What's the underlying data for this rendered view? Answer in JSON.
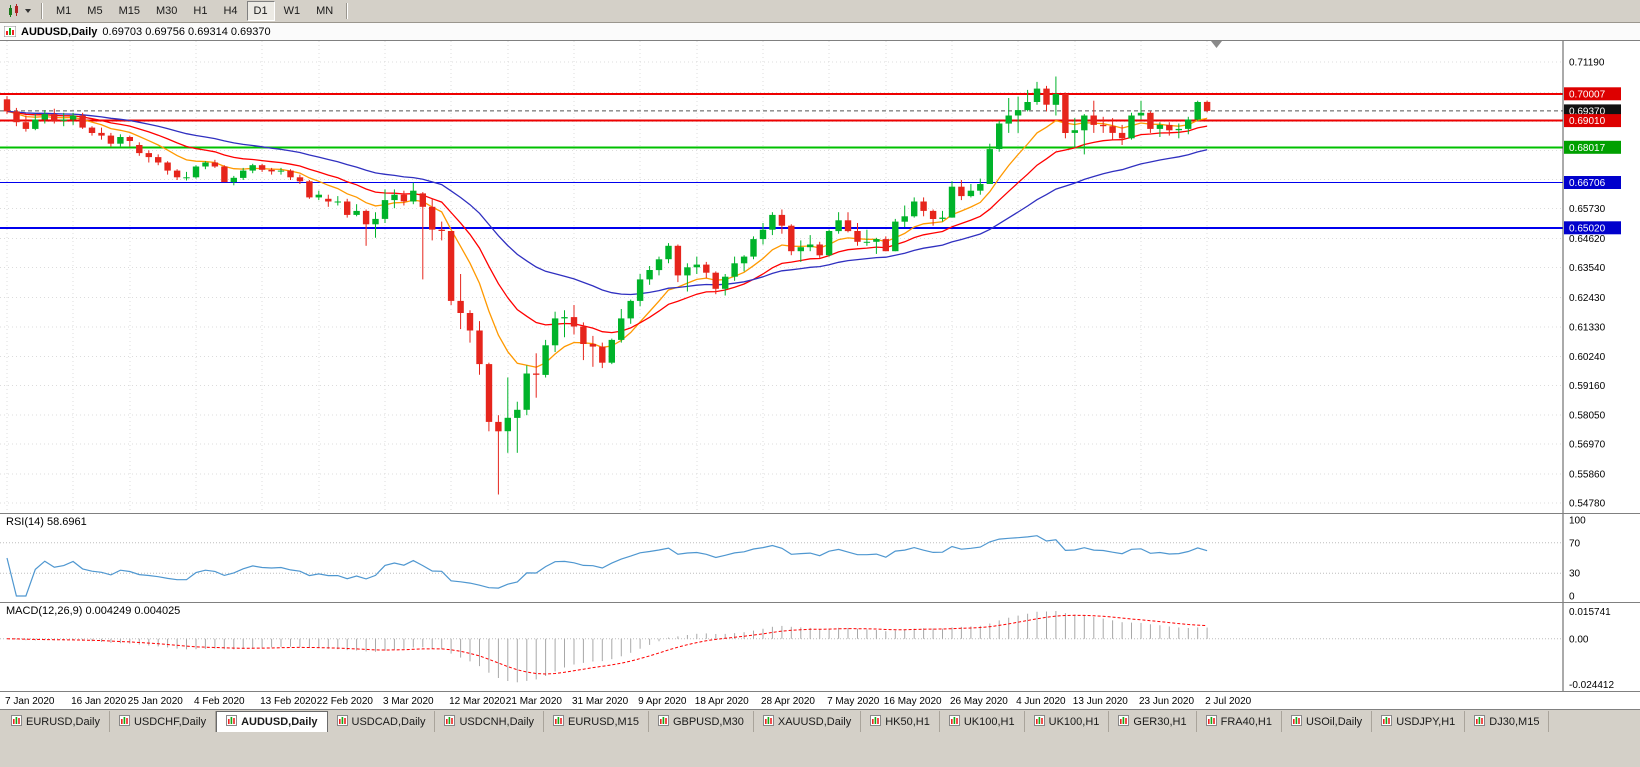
{
  "toolbar": {
    "chart_type_button": "Charts",
    "timeframes": [
      {
        "label": "M1",
        "active": false
      },
      {
        "label": "M5",
        "active": false
      },
      {
        "label": "M15",
        "active": false
      },
      {
        "label": "M30",
        "active": false
      },
      {
        "label": "H1",
        "active": false
      },
      {
        "label": "H4",
        "active": false
      },
      {
        "label": "D1",
        "active": true
      },
      {
        "label": "W1",
        "active": false
      },
      {
        "label": "MN",
        "active": false
      }
    ]
  },
  "chart_header": {
    "title": "AUDUSD,Daily",
    "ohlc": "0.69703 0.69756 0.69314 0.69370",
    "open": "0.69703",
    "high": "0.69756",
    "low": "0.69314",
    "close": "0.69370"
  },
  "colors": {
    "toolbar_bg": "#d4d0c8",
    "chart_bg": "#ffffff",
    "grid": "#dcdcdc",
    "bull": "#00b32a",
    "bear": "#e6251c",
    "current_price_line": "#555555",
    "macd_hist": "#a8a8a8",
    "macd_signal": "#ff0000",
    "axis_line": "#555555"
  },
  "chart_data": {
    "type": "candlestick",
    "symbol": "AUDUSD",
    "period": "Daily",
    "current_price": 0.6937,
    "price_axis": {
      "decimals": 5,
      "view_max": 0.7197,
      "view_min": 0.5441,
      "labels": [
        0.7119,
        0.6573,
        0.6462,
        0.6354,
        0.6243,
        0.6133,
        0.6024,
        0.5916,
        0.5805,
        0.5697,
        0.5586,
        0.5478
      ],
      "gridlines": [
        0.7119,
        0.7005,
        0.6897,
        0.6789,
        0.6681,
        0.6573,
        0.6462,
        0.6354,
        0.6243,
        0.6133,
        0.6024,
        0.5916,
        0.5805,
        0.5697,
        0.5586,
        0.5478
      ]
    },
    "price_badges": [
      {
        "label": "0.70007",
        "price": 0.70007,
        "color": "#dd0000"
      },
      {
        "label": "0.69370",
        "price": 0.6937,
        "color": "#111111"
      },
      {
        "label": "0.69010",
        "price": 0.6901,
        "color": "#dd0000"
      },
      {
        "label": "0.68017",
        "price": 0.68017,
        "color": "#00a000"
      },
      {
        "label": "0.66706",
        "price": 0.66706,
        "color": "#0000cc"
      },
      {
        "label": "0.65020",
        "price": 0.6502,
        "color": "#0000cc"
      }
    ],
    "horizontal_lines": [
      {
        "price": 0.70007,
        "color": "#ee0000",
        "width": 2
      },
      {
        "price": 0.6901,
        "color": "#ee0000",
        "width": 2
      },
      {
        "price": 0.68017,
        "color": "#00c000",
        "width": 2
      },
      {
        "price": 0.66706,
        "color": "#0000ee",
        "width": 1
      },
      {
        "price": 0.6502,
        "color": "#0000ee",
        "width": 2
      }
    ],
    "moving_averages": [
      {
        "period": 9,
        "method": "ema",
        "color": "#ff9900"
      },
      {
        "period": 18,
        "method": "ema",
        "color": "#ff0000"
      },
      {
        "period": 36,
        "method": "ema",
        "color": "#3030c0"
      }
    ],
    "date_labels": [
      {
        "text": "7 Jan 2020",
        "index": 0
      },
      {
        "text": "16 Jan 2020",
        "index": 7
      },
      {
        "text": "25 Jan 2020",
        "index": 13
      },
      {
        "text": "4 Feb 2020",
        "index": 20
      },
      {
        "text": "13 Feb 2020",
        "index": 27
      },
      {
        "text": "22 Feb 2020",
        "index": 33
      },
      {
        "text": "3 Mar 2020",
        "index": 40
      },
      {
        "text": "12 Mar 2020",
        "index": 47
      },
      {
        "text": "21 Mar 2020",
        "index": 53
      },
      {
        "text": "31 Mar 2020",
        "index": 60
      },
      {
        "text": "9 Apr 2020",
        "index": 67
      },
      {
        "text": "18 Apr 2020",
        "index": 73
      },
      {
        "text": "28 Apr 2020",
        "index": 80
      },
      {
        "text": "7 May 2020",
        "index": 87
      },
      {
        "text": "16 May 2020",
        "index": 93
      },
      {
        "text": "26 May 2020",
        "index": 100
      },
      {
        "text": "4 Jun 2020",
        "index": 107
      },
      {
        "text": "13 Jun 2020",
        "index": 113
      },
      {
        "text": "23 Jun 2020",
        "index": 120
      },
      {
        "text": "2 Jul 2020",
        "index": 127
      }
    ],
    "candles": [
      [
        0.698,
        0.6992,
        0.6925,
        0.6935
      ],
      [
        0.6935,
        0.6948,
        0.688,
        0.6895
      ],
      [
        0.6895,
        0.692,
        0.686,
        0.687
      ],
      [
        0.687,
        0.6925,
        0.6865,
        0.6905
      ],
      [
        0.6905,
        0.694,
        0.689,
        0.6925
      ],
      [
        0.6925,
        0.6945,
        0.689,
        0.69
      ],
      [
        0.69,
        0.693,
        0.688,
        0.6905
      ],
      [
        0.6905,
        0.693,
        0.6885,
        0.692
      ],
      [
        0.692,
        0.693,
        0.687,
        0.6875
      ],
      [
        0.6875,
        0.688,
        0.6845,
        0.6855
      ],
      [
        0.6855,
        0.6875,
        0.683,
        0.6845
      ],
      [
        0.6845,
        0.6855,
        0.6805,
        0.6815
      ],
      [
        0.6815,
        0.685,
        0.6805,
        0.684
      ],
      [
        0.684,
        0.6845,
        0.6805,
        0.6825
      ],
      [
        0.681,
        0.682,
        0.677,
        0.678
      ],
      [
        0.678,
        0.679,
        0.6745,
        0.6765
      ],
      [
        0.6765,
        0.6775,
        0.6735,
        0.6745
      ],
      [
        0.6745,
        0.675,
        0.67,
        0.6715
      ],
      [
        0.6715,
        0.672,
        0.668,
        0.669
      ],
      [
        0.669,
        0.671,
        0.6678,
        0.669
      ],
      [
        0.669,
        0.6735,
        0.6685,
        0.673
      ],
      [
        0.673,
        0.675,
        0.672,
        0.6745
      ],
      [
        0.6745,
        0.6755,
        0.6725,
        0.673
      ],
      [
        0.673,
        0.6735,
        0.668,
        0.6672
      ],
      [
        0.6672,
        0.6695,
        0.666,
        0.6688
      ],
      [
        0.6688,
        0.6725,
        0.668,
        0.6715
      ],
      [
        0.6715,
        0.674,
        0.6705,
        0.6735
      ],
      [
        0.6735,
        0.674,
        0.671,
        0.6718
      ],
      [
        0.6718,
        0.6725,
        0.67,
        0.6712
      ],
      [
        0.6712,
        0.6725,
        0.67,
        0.6715
      ],
      [
        0.6715,
        0.672,
        0.668,
        0.669
      ],
      [
        0.669,
        0.67,
        0.6665,
        0.6675
      ],
      [
        0.6675,
        0.668,
        0.661,
        0.6615
      ],
      [
        0.6615,
        0.664,
        0.6605,
        0.6625
      ],
      [
        0.661,
        0.6625,
        0.658,
        0.66
      ],
      [
        0.66,
        0.662,
        0.6585,
        0.66
      ],
      [
        0.66,
        0.661,
        0.654,
        0.655
      ],
      [
        0.655,
        0.659,
        0.6545,
        0.6565
      ],
      [
        0.6565,
        0.657,
        0.6435,
        0.6515
      ],
      [
        0.6515,
        0.656,
        0.6465,
        0.6535
      ],
      [
        0.6535,
        0.6645,
        0.652,
        0.6605
      ],
      [
        0.6605,
        0.6645,
        0.6575,
        0.6625
      ],
      [
        0.6625,
        0.664,
        0.6585,
        0.66
      ],
      [
        0.66,
        0.667,
        0.659,
        0.664
      ],
      [
        0.663,
        0.6635,
        0.631,
        0.658
      ],
      [
        0.658,
        0.661,
        0.6455,
        0.6495
      ],
      [
        0.6495,
        0.6525,
        0.6455,
        0.649
      ],
      [
        0.649,
        0.649,
        0.6215,
        0.623
      ],
      [
        0.623,
        0.633,
        0.6125,
        0.6185
      ],
      [
        0.6185,
        0.6195,
        0.6075,
        0.612
      ],
      [
        0.612,
        0.6155,
        0.5955,
        0.5995
      ],
      [
        0.5995,
        0.6,
        0.5745,
        0.578
      ],
      [
        0.578,
        0.5805,
        0.551,
        0.5745
      ],
      [
        0.5745,
        0.5945,
        0.5665,
        0.5795
      ],
      [
        0.5795,
        0.5855,
        0.5665,
        0.5825
      ],
      [
        0.5825,
        0.599,
        0.5805,
        0.596
      ],
      [
        0.596,
        0.6035,
        0.587,
        0.5955
      ],
      [
        0.5955,
        0.6085,
        0.5945,
        0.6065
      ],
      [
        0.6065,
        0.619,
        0.604,
        0.6165
      ],
      [
        0.6165,
        0.6195,
        0.6095,
        0.617
      ],
      [
        0.617,
        0.6215,
        0.6105,
        0.6135
      ],
      [
        0.6135,
        0.615,
        0.601,
        0.607
      ],
      [
        0.607,
        0.61,
        0.5985,
        0.606
      ],
      [
        0.606,
        0.6075,
        0.598,
        0.6
      ],
      [
        0.6,
        0.609,
        0.5995,
        0.6085
      ],
      [
        0.6085,
        0.62,
        0.6075,
        0.6165
      ],
      [
        0.6165,
        0.6235,
        0.6145,
        0.623
      ],
      [
        0.623,
        0.633,
        0.621,
        0.631
      ],
      [
        0.631,
        0.636,
        0.629,
        0.6345
      ],
      [
        0.6345,
        0.6395,
        0.6325,
        0.6385
      ],
      [
        0.6385,
        0.6445,
        0.637,
        0.6435
      ],
      [
        0.6435,
        0.644,
        0.63,
        0.6325
      ],
      [
        0.6325,
        0.637,
        0.6265,
        0.6355
      ],
      [
        0.6355,
        0.6395,
        0.633,
        0.6365
      ],
      [
        0.6365,
        0.6375,
        0.6315,
        0.6335
      ],
      [
        0.6335,
        0.634,
        0.6255,
        0.6275
      ],
      [
        0.6275,
        0.633,
        0.625,
        0.632
      ],
      [
        0.632,
        0.6395,
        0.6305,
        0.637
      ],
      [
        0.637,
        0.64,
        0.634,
        0.6395
      ],
      [
        0.6395,
        0.647,
        0.6385,
        0.646
      ],
      [
        0.646,
        0.652,
        0.644,
        0.6495
      ],
      [
        0.6495,
        0.656,
        0.6475,
        0.655
      ],
      [
        0.655,
        0.657,
        0.648,
        0.651
      ],
      [
        0.651,
        0.6515,
        0.64,
        0.6415
      ],
      [
        0.6415,
        0.6455,
        0.6375,
        0.643
      ],
      [
        0.643,
        0.6475,
        0.6415,
        0.644
      ],
      [
        0.644,
        0.645,
        0.639,
        0.64
      ],
      [
        0.64,
        0.6495,
        0.6395,
        0.649
      ],
      [
        0.649,
        0.656,
        0.648,
        0.653
      ],
      [
        0.653,
        0.656,
        0.6485,
        0.649
      ],
      [
        0.649,
        0.652,
        0.6435,
        0.645
      ],
      [
        0.645,
        0.6495,
        0.6435,
        0.645
      ],
      [
        0.645,
        0.6465,
        0.6405,
        0.646
      ],
      [
        0.646,
        0.647,
        0.6415,
        0.6415
      ],
      [
        0.6415,
        0.6535,
        0.6415,
        0.6525
      ],
      [
        0.6525,
        0.6585,
        0.6505,
        0.6545
      ],
      [
        0.6545,
        0.6615,
        0.654,
        0.66
      ],
      [
        0.66,
        0.6615,
        0.6545,
        0.6565
      ],
      [
        0.6565,
        0.657,
        0.651,
        0.6535
      ],
      [
        0.6535,
        0.6565,
        0.6525,
        0.654
      ],
      [
        0.654,
        0.6675,
        0.654,
        0.6655
      ],
      [
        0.6655,
        0.668,
        0.6605,
        0.662
      ],
      [
        0.662,
        0.6665,
        0.6615,
        0.664
      ],
      [
        0.664,
        0.6685,
        0.6625,
        0.6665
      ],
      [
        0.6665,
        0.6815,
        0.6665,
        0.6795
      ],
      [
        0.6795,
        0.69,
        0.6785,
        0.689
      ],
      [
        0.689,
        0.6985,
        0.6855,
        0.692
      ],
      [
        0.692,
        0.699,
        0.6855,
        0.694
      ],
      [
        0.694,
        0.7015,
        0.6935,
        0.697
      ],
      [
        0.697,
        0.7045,
        0.696,
        0.702
      ],
      [
        0.702,
        0.703,
        0.6935,
        0.696
      ],
      [
        0.696,
        0.7065,
        0.692,
        0.7
      ],
      [
        0.7,
        0.7005,
        0.6835,
        0.6855
      ],
      [
        0.6855,
        0.691,
        0.68,
        0.6865
      ],
      [
        0.6865,
        0.6925,
        0.6775,
        0.692
      ],
      [
        0.692,
        0.6975,
        0.6855,
        0.6885
      ],
      [
        0.6885,
        0.6915,
        0.6855,
        0.688
      ],
      [
        0.688,
        0.691,
        0.683,
        0.6855
      ],
      [
        0.6855,
        0.6885,
        0.681,
        0.6835
      ],
      [
        0.6835,
        0.693,
        0.683,
        0.692
      ],
      [
        0.692,
        0.6975,
        0.6905,
        0.693
      ],
      [
        0.693,
        0.6935,
        0.6855,
        0.687
      ],
      [
        0.687,
        0.6895,
        0.684,
        0.6885
      ],
      [
        0.6885,
        0.6895,
        0.6845,
        0.6865
      ],
      [
        0.6865,
        0.689,
        0.6835,
        0.687
      ],
      [
        0.687,
        0.6915,
        0.685,
        0.6905
      ],
      [
        0.6905,
        0.6975,
        0.69,
        0.697
      ],
      [
        0.69703,
        0.69756,
        0.69314,
        0.6937
      ]
    ],
    "rsi": {
      "name": "RSI(14)",
      "value": "58.6961",
      "period": 14,
      "levels": [
        100,
        70,
        30,
        0
      ],
      "color": "#4f97d0"
    },
    "macd": {
      "name": "MACD(12,26,9)",
      "value": "0.004249 0.004025",
      "fast": 12,
      "slow": 26,
      "signal": 9,
      "axis_max": 0.015741,
      "axis_min": -0.024412,
      "axis_labels": [
        "0.015741",
        "0.00",
        "-0.024412"
      ]
    }
  },
  "bottom_tabs": [
    {
      "label": "EURUSD,Daily",
      "active": false
    },
    {
      "label": "USDCHF,Daily",
      "active": false
    },
    {
      "label": "AUDUSD,Daily",
      "active": true
    },
    {
      "label": "USDCAD,Daily",
      "active": false
    },
    {
      "label": "USDCNH,Daily",
      "active": false
    },
    {
      "label": "EURUSD,M15",
      "active": false
    },
    {
      "label": "GBPUSD,M30",
      "active": false
    },
    {
      "label": "XAUUSD,Daily",
      "active": false
    },
    {
      "label": "HK50,H1",
      "active": false
    },
    {
      "label": "UK100,H1",
      "active": false
    },
    {
      "label": "UK100,H1",
      "active": false
    },
    {
      "label": "GER30,H1",
      "active": false
    },
    {
      "label": "FRA40,H1",
      "active": false
    },
    {
      "label": "USOil,Daily",
      "active": false
    },
    {
      "label": "USDJPY,H1",
      "active": false
    },
    {
      "label": "DJ30,M15",
      "active": false
    }
  ]
}
